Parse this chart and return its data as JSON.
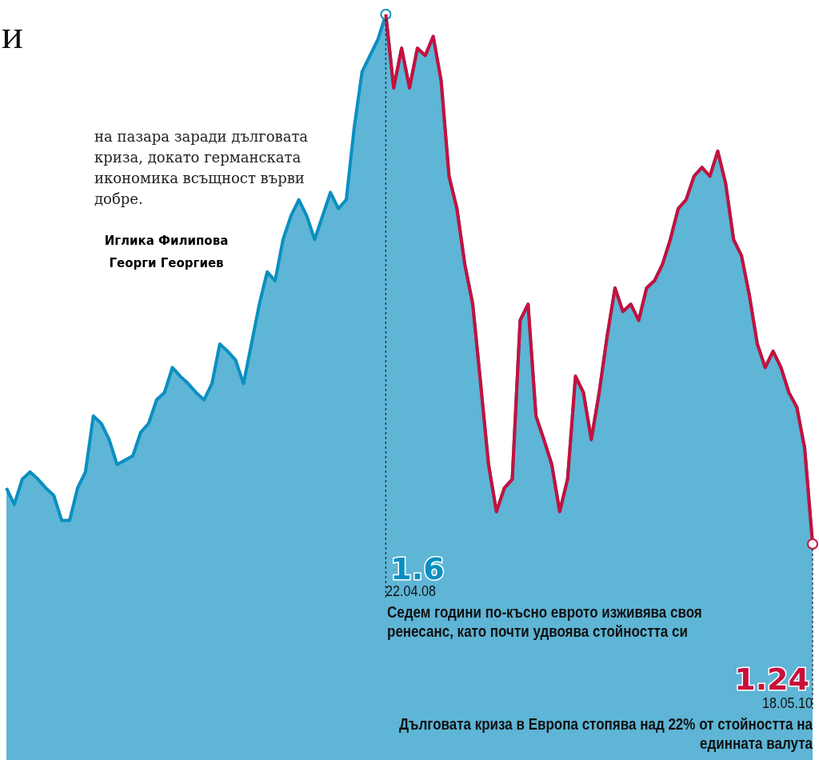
{
  "chart_data": {
    "type": "area",
    "title": "и",
    "categories": [
      null,
      null,
      null,
      null,
      null,
      null,
      null,
      null,
      null,
      null,
      null,
      null,
      null,
      null,
      null,
      null,
      null,
      null,
      null,
      null,
      null,
      null,
      null,
      null,
      null,
      null,
      null,
      null,
      null,
      null,
      null,
      null,
      null,
      null,
      null,
      null,
      null,
      null,
      null,
      null,
      null,
      null,
      null,
      null,
      null,
      null,
      null,
      null,
      null,
      null,
      null,
      null,
      null,
      null,
      null,
      null,
      null,
      null,
      null,
      null,
      null,
      null,
      null,
      null,
      null,
      null,
      null,
      null,
      null,
      null,
      null,
      null,
      null,
      null,
      null,
      null,
      null,
      null,
      null,
      null,
      null,
      null,
      null,
      null,
      null,
      null,
      null,
      null,
      null,
      null,
      null,
      null,
      null,
      null,
      null,
      null,
      null,
      null,
      null,
      null,
      null,
      null,
      null
    ],
    "series": [
      {
        "color": "#0a8fc0",
        "values": [
          1.278,
          1.267,
          1.284,
          1.289,
          1.284,
          1.278,
          1.273,
          1.256,
          1.256,
          1.278,
          1.289,
          1.327,
          1.322,
          1.311,
          1.294,
          1.297,
          1.3,
          1.316,
          1.322,
          1.338,
          1.343,
          1.36,
          1.354,
          1.349,
          1.343,
          1.338,
          1.349,
          1.376,
          1.371,
          1.365,
          1.349,
          1.376,
          1.403,
          1.425,
          1.419,
          1.447,
          1.463,
          1.474,
          1.463,
          1.447,
          1.463,
          1.479,
          1.468,
          1.474,
          1.523,
          1.561,
          1.572,
          1.583,
          1.6,
          1.55,
          1.577,
          1.55,
          1.577,
          1.572,
          1.585,
          1.555,
          1.49,
          1.468,
          1.43,
          1.403,
          1.349,
          1.294,
          1.262,
          1.278,
          1.284,
          1.392,
          1.403,
          1.327,
          1.311,
          1.294,
          1.262,
          1.284,
          1.354,
          1.343,
          1.311,
          1.343,
          1.381,
          1.414,
          1.398,
          1.403,
          1.392,
          1.414,
          1.419,
          1.43,
          1.447,
          1.468,
          1.474,
          1.49,
          1.496,
          1.49,
          1.507,
          1.485,
          1.447,
          1.436,
          1.409,
          1.376,
          1.36,
          1.371,
          1.36,
          1.343,
          1.333,
          1.305,
          1.24
        ],
        "value_labels": [
          null,
          null,
          null,
          null,
          null,
          null,
          null,
          null,
          null,
          null,
          null,
          null,
          null,
          null,
          null,
          null,
          null,
          null,
          null,
          null,
          null,
          null,
          null,
          null,
          null,
          null,
          null,
          null,
          null,
          null,
          null,
          null,
          null,
          null,
          null,
          null,
          null,
          null,
          null,
          null,
          null,
          null,
          null,
          null,
          null,
          null,
          null,
          null,
          "1.6",
          null,
          null,
          null,
          null,
          null,
          null,
          null,
          null,
          null,
          null,
          null,
          null,
          null,
          null,
          null,
          null,
          null,
          null,
          null,
          null,
          null,
          null,
          null,
          null,
          null,
          null,
          null,
          null,
          null,
          null,
          null,
          null,
          null,
          null,
          null,
          null,
          null,
          null,
          null,
          null,
          null,
          null,
          null,
          null,
          null,
          null,
          null,
          null,
          null,
          null,
          null,
          null,
          null,
          null
        ]
      },
      {
        "type": "line",
        "color": "#c8103c",
        "values": [
          null,
          null,
          null,
          null,
          null,
          null,
          null,
          null,
          null,
          null,
          null,
          null,
          null,
          null,
          null,
          null,
          null,
          null,
          null,
          null,
          null,
          null,
          null,
          null,
          null,
          null,
          null,
          null,
          null,
          null,
          null,
          null,
          null,
          null,
          null,
          null,
          null,
          null,
          null,
          null,
          null,
          null,
          null,
          null,
          null,
          null,
          null,
          null,
          1.6,
          1.55,
          1.577,
          1.55,
          1.577,
          1.572,
          1.585,
          1.555,
          1.49,
          1.468,
          1.43,
          1.403,
          1.349,
          1.294,
          1.262,
          1.278,
          1.284,
          1.392,
          1.403,
          1.327,
          1.311,
          1.294,
          1.262,
          1.284,
          1.354,
          1.343,
          1.311,
          1.343,
          1.381,
          1.414,
          1.398,
          1.403,
          1.392,
          1.414,
          1.419,
          1.43,
          1.447,
          1.468,
          1.474,
          1.49,
          1.496,
          1.49,
          1.507,
          1.485,
          1.447,
          1.436,
          1.409,
          1.376,
          1.36,
          1.371,
          1.36,
          1.343,
          1.333,
          1.305,
          1.24
        ],
        "value_labels": [
          null,
          null,
          null,
          null,
          null,
          null,
          null,
          null,
          null,
          null,
          null,
          null,
          null,
          null,
          null,
          null,
          null,
          null,
          null,
          null,
          null,
          null,
          null,
          null,
          null,
          null,
          null,
          null,
          null,
          null,
          null,
          null,
          null,
          null,
          null,
          null,
          null,
          null,
          null,
          null,
          null,
          null,
          null,
          null,
          null,
          null,
          null,
          null,
          null,
          null,
          null,
          null,
          null,
          null,
          null,
          null,
          null,
          null,
          null,
          null,
          null,
          null,
          null,
          null,
          null,
          null,
          null,
          null,
          null,
          null,
          null,
          null,
          null,
          null,
          null,
          null,
          null,
          null,
          null,
          null,
          null,
          null,
          null,
          null,
          null,
          null,
          null,
          null,
          null,
          null,
          null,
          null,
          null,
          null,
          null,
          null,
          null,
          null,
          null,
          null,
          null,
          null,
          "1.24"
        ]
      }
    ],
    "annotations": [
      "на пазара заради дълговата криза, докато германската икономика всъщност върви добре.",
      "Иглика Филипова",
      "Георги Георгиев",
      "22.04.08",
      "Седем години по-късно еврото изживява своя ренесанс, като почти удвоява стойността си",
      "18.05.10",
      "Дълговата криза в Европа стопява над 22% от стойността на единната валута"
    ]
  }
}
